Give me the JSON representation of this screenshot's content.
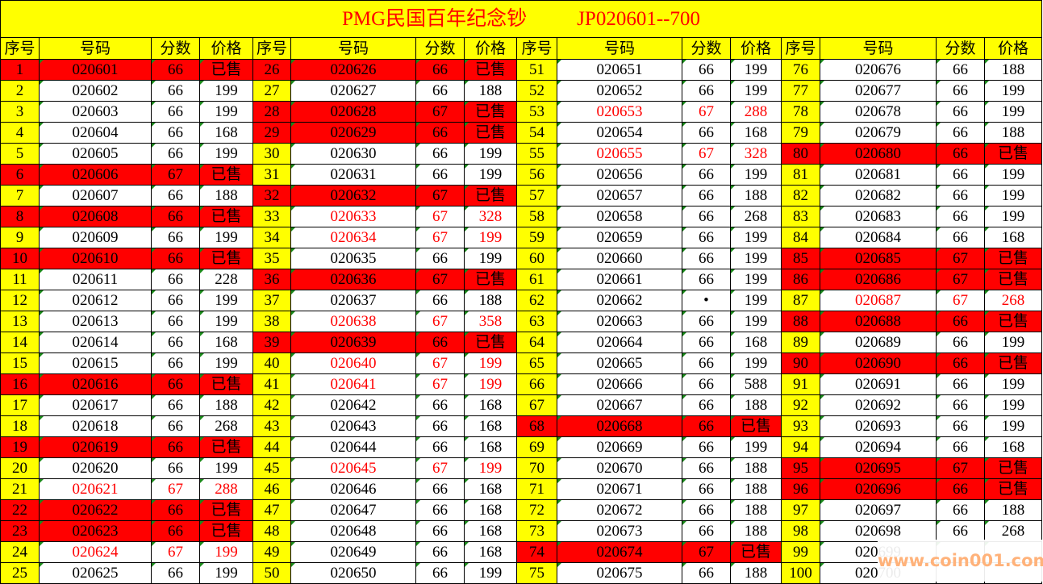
{
  "title": {
    "left": "PMG民国百年纪念钞",
    "right": "JP020601--700"
  },
  "columns": [
    "序号",
    "号码",
    "分数",
    "价格"
  ],
  "colors": {
    "header_bg": "#ffff00",
    "sold_bg": "#ff0000",
    "highlight_text": "#ff0000",
    "title_text": "#ff0000"
  },
  "sold_label": "已售",
  "groups": [
    [
      [
        "1",
        "020601",
        "66",
        "已售",
        "sold"
      ],
      [
        "2",
        "020602",
        "66",
        "199",
        "normal"
      ],
      [
        "3",
        "020603",
        "66",
        "199",
        "normal"
      ],
      [
        "4",
        "020604",
        "66",
        "168",
        "normal"
      ],
      [
        "5",
        "020605",
        "66",
        "199",
        "normal"
      ],
      [
        "6",
        "020606",
        "67",
        "已售",
        "sold"
      ],
      [
        "7",
        "020607",
        "66",
        "188",
        "normal"
      ],
      [
        "8",
        "020608",
        "66",
        "已售",
        "sold"
      ],
      [
        "9",
        "020609",
        "66",
        "199",
        "normal"
      ],
      [
        "10",
        "020610",
        "66",
        "已售",
        "sold"
      ],
      [
        "11",
        "020611",
        "66",
        "228",
        "normal"
      ],
      [
        "12",
        "020612",
        "66",
        "199",
        "normal"
      ],
      [
        "13",
        "020613",
        "66",
        "199",
        "normal"
      ],
      [
        "14",
        "020614",
        "66",
        "168",
        "normal"
      ],
      [
        "15",
        "020615",
        "66",
        "199",
        "normal"
      ],
      [
        "16",
        "020616",
        "66",
        "已售",
        "sold"
      ],
      [
        "17",
        "020617",
        "66",
        "188",
        "normal"
      ],
      [
        "18",
        "020618",
        "66",
        "268",
        "normal"
      ],
      [
        "19",
        "020619",
        "66",
        "已售",
        "sold"
      ],
      [
        "20",
        "020620",
        "66",
        "199",
        "normal"
      ],
      [
        "21",
        "020621",
        "67",
        "288",
        "highlight"
      ],
      [
        "22",
        "020622",
        "66",
        "已售",
        "sold"
      ],
      [
        "23",
        "020623",
        "66",
        "已售",
        "sold"
      ],
      [
        "24",
        "020624",
        "67",
        "199",
        "highlight"
      ],
      [
        "25",
        "020625",
        "66",
        "199",
        "normal"
      ]
    ],
    [
      [
        "26",
        "020626",
        "66",
        "已售",
        "sold"
      ],
      [
        "27",
        "020627",
        "66",
        "188",
        "normal"
      ],
      [
        "28",
        "020628",
        "67",
        "已售",
        "sold"
      ],
      [
        "29",
        "020629",
        "66",
        "已售",
        "sold"
      ],
      [
        "30",
        "020630",
        "66",
        "199",
        "normal"
      ],
      [
        "31",
        "020631",
        "66",
        "199",
        "normal"
      ],
      [
        "32",
        "020632",
        "67",
        "已售",
        "sold"
      ],
      [
        "33",
        "020633",
        "67",
        "328",
        "highlight"
      ],
      [
        "34",
        "020634",
        "67",
        "199",
        "highlight"
      ],
      [
        "35",
        "020635",
        "66",
        "199",
        "normal"
      ],
      [
        "36",
        "020636",
        "67",
        "已售",
        "sold"
      ],
      [
        "37",
        "020637",
        "66",
        "188",
        "normal"
      ],
      [
        "38",
        "020638",
        "67",
        "358",
        "highlight"
      ],
      [
        "39",
        "020639",
        "66",
        "已售",
        "sold"
      ],
      [
        "40",
        "020640",
        "67",
        "199",
        "highlight"
      ],
      [
        "41",
        "020641",
        "67",
        "199",
        "highlight"
      ],
      [
        "42",
        "020642",
        "66",
        "168",
        "normal"
      ],
      [
        "43",
        "020643",
        "66",
        "168",
        "normal"
      ],
      [
        "44",
        "020644",
        "66",
        "168",
        "normal"
      ],
      [
        "45",
        "020645",
        "67",
        "199",
        "highlight"
      ],
      [
        "46",
        "020646",
        "66",
        "168",
        "normal"
      ],
      [
        "47",
        "020647",
        "66",
        "168",
        "normal"
      ],
      [
        "48",
        "020648",
        "66",
        "168",
        "normal"
      ],
      [
        "49",
        "020649",
        "66",
        "168",
        "normal"
      ],
      [
        "50",
        "020650",
        "66",
        "199",
        "normal"
      ]
    ],
    [
      [
        "51",
        "020651",
        "66",
        "199",
        "normal"
      ],
      [
        "52",
        "020652",
        "66",
        "199",
        "normal"
      ],
      [
        "53",
        "020653",
        "67",
        "288",
        "highlight"
      ],
      [
        "54",
        "020654",
        "66",
        "168",
        "normal"
      ],
      [
        "55",
        "020655",
        "67",
        "328",
        "highlight"
      ],
      [
        "56",
        "020656",
        "66",
        "199",
        "normal"
      ],
      [
        "57",
        "020657",
        "66",
        "188",
        "normal"
      ],
      [
        "58",
        "020658",
        "66",
        "268",
        "normal"
      ],
      [
        "59",
        "020659",
        "66",
        "199",
        "normal"
      ],
      [
        "60",
        "020660",
        "66",
        "199",
        "normal"
      ],
      [
        "61",
        "020661",
        "66",
        "199",
        "normal"
      ],
      [
        "62",
        "020662",
        "•",
        "199",
        "normal"
      ],
      [
        "63",
        "020663",
        "66",
        "199",
        "normal"
      ],
      [
        "64",
        "020664",
        "66",
        "168",
        "normal"
      ],
      [
        "65",
        "020665",
        "66",
        "199",
        "normal"
      ],
      [
        "66",
        "020666",
        "66",
        "588",
        "normal"
      ],
      [
        "67",
        "020667",
        "66",
        "188",
        "normal"
      ],
      [
        "68",
        "020668",
        "66",
        "已售",
        "sold"
      ],
      [
        "69",
        "020669",
        "66",
        "199",
        "normal"
      ],
      [
        "70",
        "020670",
        "66",
        "188",
        "normal"
      ],
      [
        "71",
        "020671",
        "66",
        "188",
        "normal"
      ],
      [
        "72",
        "020672",
        "66",
        "188",
        "normal"
      ],
      [
        "73",
        "020673",
        "66",
        "188",
        "normal"
      ],
      [
        "74",
        "020674",
        "67",
        "已售",
        "sold"
      ],
      [
        "75",
        "020675",
        "66",
        "188",
        "normal"
      ]
    ],
    [
      [
        "76",
        "020676",
        "66",
        "188",
        "normal"
      ],
      [
        "77",
        "020677",
        "66",
        "199",
        "normal"
      ],
      [
        "78",
        "020678",
        "66",
        "199",
        "normal"
      ],
      [
        "79",
        "020679",
        "66",
        "188",
        "normal"
      ],
      [
        "80",
        "020680",
        "66",
        "已售",
        "sold"
      ],
      [
        "81",
        "020681",
        "66",
        "199",
        "normal"
      ],
      [
        "82",
        "020682",
        "66",
        "199",
        "normal"
      ],
      [
        "83",
        "020683",
        "66",
        "199",
        "normal"
      ],
      [
        "84",
        "020684",
        "66",
        "168",
        "normal"
      ],
      [
        "85",
        "020685",
        "67",
        "已售",
        "sold"
      ],
      [
        "86",
        "020686",
        "67",
        "已售",
        "sold"
      ],
      [
        "87",
        "020687",
        "67",
        "268",
        "highlight"
      ],
      [
        "88",
        "020688",
        "66",
        "已售",
        "sold"
      ],
      [
        "89",
        "020689",
        "66",
        "199",
        "normal"
      ],
      [
        "90",
        "020690",
        "66",
        "已售",
        "sold"
      ],
      [
        "91",
        "020691",
        "66",
        "199",
        "normal"
      ],
      [
        "92",
        "020692",
        "66",
        "199",
        "normal"
      ],
      [
        "93",
        "020693",
        "66",
        "199",
        "normal"
      ],
      [
        "94",
        "020694",
        "66",
        "168",
        "normal"
      ],
      [
        "95",
        "020695",
        "67",
        "已售",
        "sold"
      ],
      [
        "96",
        "020696",
        "66",
        "已售",
        "sold"
      ],
      [
        "97",
        "020697",
        "66",
        "188",
        "normal"
      ],
      [
        "98",
        "020698",
        "66",
        "268",
        "normal"
      ],
      [
        "99",
        "020699",
        "",
        "",
        "normal"
      ],
      [
        "100",
        "020700",
        "",
        "",
        "normal"
      ]
    ]
  ],
  "watermark": "www.coin001.com"
}
